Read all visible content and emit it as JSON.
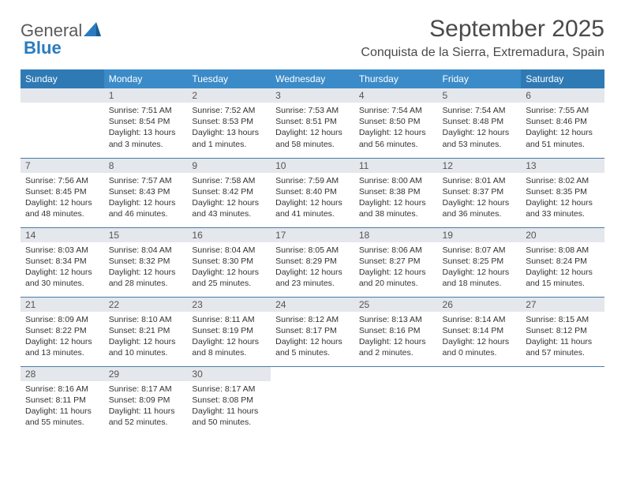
{
  "logo": {
    "text1": "General",
    "text2": "Blue"
  },
  "title": "September 2025",
  "location": "Conquista de la Sierra, Extremadura, Spain",
  "header_bg": "#3b8bc9",
  "header_weekend_bg": "#2f7ab5",
  "rule_color": "#4a7ba8",
  "daynum_bg": "#e4e7eb",
  "day_headers": [
    "Sunday",
    "Monday",
    "Tuesday",
    "Wednesday",
    "Thursday",
    "Friday",
    "Saturday"
  ],
  "weeks": [
    [
      null,
      {
        "n": "1",
        "sr": "7:51 AM",
        "ss": "8:54 PM",
        "dl": "13 hours and 3 minutes."
      },
      {
        "n": "2",
        "sr": "7:52 AM",
        "ss": "8:53 PM",
        "dl": "13 hours and 1 minutes."
      },
      {
        "n": "3",
        "sr": "7:53 AM",
        "ss": "8:51 PM",
        "dl": "12 hours and 58 minutes."
      },
      {
        "n": "4",
        "sr": "7:54 AM",
        "ss": "8:50 PM",
        "dl": "12 hours and 56 minutes."
      },
      {
        "n": "5",
        "sr": "7:54 AM",
        "ss": "8:48 PM",
        "dl": "12 hours and 53 minutes."
      },
      {
        "n": "6",
        "sr": "7:55 AM",
        "ss": "8:46 PM",
        "dl": "12 hours and 51 minutes."
      }
    ],
    [
      {
        "n": "7",
        "sr": "7:56 AM",
        "ss": "8:45 PM",
        "dl": "12 hours and 48 minutes."
      },
      {
        "n": "8",
        "sr": "7:57 AM",
        "ss": "8:43 PM",
        "dl": "12 hours and 46 minutes."
      },
      {
        "n": "9",
        "sr": "7:58 AM",
        "ss": "8:42 PM",
        "dl": "12 hours and 43 minutes."
      },
      {
        "n": "10",
        "sr": "7:59 AM",
        "ss": "8:40 PM",
        "dl": "12 hours and 41 minutes."
      },
      {
        "n": "11",
        "sr": "8:00 AM",
        "ss": "8:38 PM",
        "dl": "12 hours and 38 minutes."
      },
      {
        "n": "12",
        "sr": "8:01 AM",
        "ss": "8:37 PM",
        "dl": "12 hours and 36 minutes."
      },
      {
        "n": "13",
        "sr": "8:02 AM",
        "ss": "8:35 PM",
        "dl": "12 hours and 33 minutes."
      }
    ],
    [
      {
        "n": "14",
        "sr": "8:03 AM",
        "ss": "8:34 PM",
        "dl": "12 hours and 30 minutes."
      },
      {
        "n": "15",
        "sr": "8:04 AM",
        "ss": "8:32 PM",
        "dl": "12 hours and 28 minutes."
      },
      {
        "n": "16",
        "sr": "8:04 AM",
        "ss": "8:30 PM",
        "dl": "12 hours and 25 minutes."
      },
      {
        "n": "17",
        "sr": "8:05 AM",
        "ss": "8:29 PM",
        "dl": "12 hours and 23 minutes."
      },
      {
        "n": "18",
        "sr": "8:06 AM",
        "ss": "8:27 PM",
        "dl": "12 hours and 20 minutes."
      },
      {
        "n": "19",
        "sr": "8:07 AM",
        "ss": "8:25 PM",
        "dl": "12 hours and 18 minutes."
      },
      {
        "n": "20",
        "sr": "8:08 AM",
        "ss": "8:24 PM",
        "dl": "12 hours and 15 minutes."
      }
    ],
    [
      {
        "n": "21",
        "sr": "8:09 AM",
        "ss": "8:22 PM",
        "dl": "12 hours and 13 minutes."
      },
      {
        "n": "22",
        "sr": "8:10 AM",
        "ss": "8:21 PM",
        "dl": "12 hours and 10 minutes."
      },
      {
        "n": "23",
        "sr": "8:11 AM",
        "ss": "8:19 PM",
        "dl": "12 hours and 8 minutes."
      },
      {
        "n": "24",
        "sr": "8:12 AM",
        "ss": "8:17 PM",
        "dl": "12 hours and 5 minutes."
      },
      {
        "n": "25",
        "sr": "8:13 AM",
        "ss": "8:16 PM",
        "dl": "12 hours and 2 minutes."
      },
      {
        "n": "26",
        "sr": "8:14 AM",
        "ss": "8:14 PM",
        "dl": "12 hours and 0 minutes."
      },
      {
        "n": "27",
        "sr": "8:15 AM",
        "ss": "8:12 PM",
        "dl": "11 hours and 57 minutes."
      }
    ],
    [
      {
        "n": "28",
        "sr": "8:16 AM",
        "ss": "8:11 PM",
        "dl": "11 hours and 55 minutes."
      },
      {
        "n": "29",
        "sr": "8:17 AM",
        "ss": "8:09 PM",
        "dl": "11 hours and 52 minutes."
      },
      {
        "n": "30",
        "sr": "8:17 AM",
        "ss": "8:08 PM",
        "dl": "11 hours and 50 minutes."
      },
      null,
      null,
      null,
      null
    ]
  ],
  "labels": {
    "sunrise": "Sunrise:",
    "sunset": "Sunset:",
    "daylight": "Daylight:"
  }
}
